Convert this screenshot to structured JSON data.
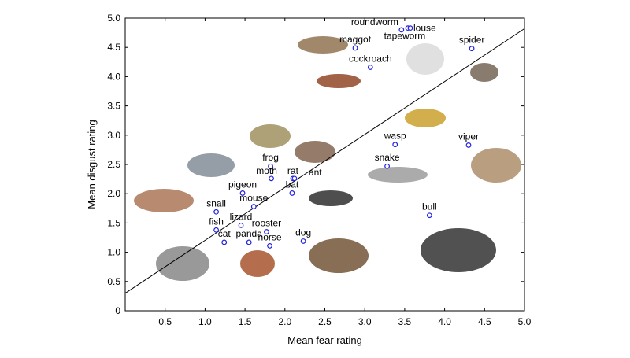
{
  "chart_data": {
    "type": "scatter",
    "title": "",
    "xlabel": "Mean fear rating",
    "ylabel": "Mean disgust rating",
    "xlim": [
      0,
      5.0
    ],
    "ylim": [
      0,
      5.0
    ],
    "xticks": [
      "0.5",
      "1.0",
      "1.5",
      "2.0",
      "2.5",
      "3.0",
      "3.5",
      "4.0",
      "4.5",
      "5.0"
    ],
    "yticks": [
      "0",
      "0.5",
      "1.0",
      "1.5",
      "2.0",
      "2.5",
      "3.0",
      "3.5",
      "4.0",
      "4.5",
      "5.0"
    ],
    "grid": false,
    "marker_color": "#2222dd",
    "fit_line": {
      "x": [
        0,
        5.0
      ],
      "y": [
        0.3,
        4.82
      ]
    },
    "points": [
      {
        "label": "roundworm",
        "x": 3.46,
        "y": 4.8
      },
      {
        "label": "tapeworm",
        "x": 3.54,
        "y": 4.83
      },
      {
        "label": "louse",
        "x": 3.57,
        "y": 4.83
      },
      {
        "label": "maggot",
        "x": 2.88,
        "y": 4.49
      },
      {
        "label": "spider",
        "x": 4.34,
        "y": 4.48
      },
      {
        "label": "cockroach",
        "x": 3.07,
        "y": 4.16
      },
      {
        "label": "wasp",
        "x": 3.38,
        "y": 2.84
      },
      {
        "label": "viper",
        "x": 4.3,
        "y": 2.83
      },
      {
        "label": "snake",
        "x": 3.28,
        "y": 2.47
      },
      {
        "label": "frog",
        "x": 1.82,
        "y": 2.47
      },
      {
        "label": "moth",
        "x": 1.83,
        "y": 2.26
      },
      {
        "label": "rat",
        "x": 2.1,
        "y": 2.26
      },
      {
        "label": "ant",
        "x": 2.12,
        "y": 2.26
      },
      {
        "label": "bat",
        "x": 2.09,
        "y": 2.01
      },
      {
        "label": "pigeon",
        "x": 1.47,
        "y": 2.01
      },
      {
        "label": "mouse",
        "x": 1.61,
        "y": 1.78
      },
      {
        "label": "snail",
        "x": 1.14,
        "y": 1.69
      },
      {
        "label": "bull",
        "x": 3.81,
        "y": 1.63
      },
      {
        "label": "lizard",
        "x": 1.45,
        "y": 1.46
      },
      {
        "label": "fish",
        "x": 1.14,
        "y": 1.38
      },
      {
        "label": "rooster",
        "x": 1.77,
        "y": 1.35
      },
      {
        "label": "dog",
        "x": 2.23,
        "y": 1.19
      },
      {
        "label": "cat",
        "x": 1.24,
        "y": 1.17
      },
      {
        "label": "panda",
        "x": 1.55,
        "y": 1.17
      },
      {
        "label": "horse",
        "x": 1.81,
        "y": 1.11
      }
    ]
  }
}
